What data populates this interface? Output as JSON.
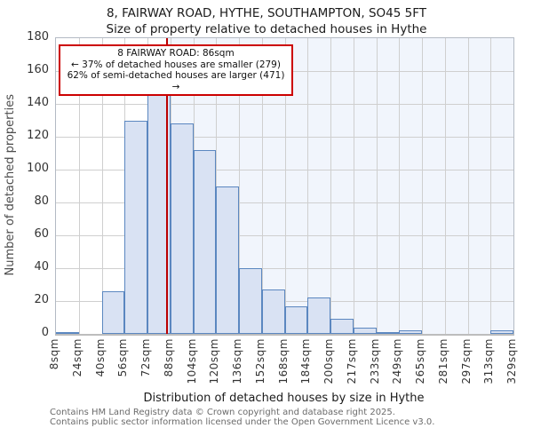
{
  "header": {
    "title": "8, FAIRWAY ROAD, HYTHE, SOUTHAMPTON, SO45 5FT",
    "subtitle": "Size of property relative to detached houses in Hythe"
  },
  "annotation": {
    "line1": "8 FAIRWAY ROAD: 86sqm",
    "line2": "← 37% of detached houses are smaller (279)",
    "line3": "62% of semi-detached houses are larger (471) →"
  },
  "marker": {
    "value_sqm": 86,
    "color": "#bb0000",
    "box_border_color": "#cc0000"
  },
  "chart_data": {
    "type": "bar",
    "title": "8, FAIRWAY ROAD, HYTHE, SOUTHAMPTON, SO45 5FT",
    "subtitle": "Size of property relative to detached houses in Hythe",
    "xlabel": "Distribution of detached houses by size in Hythe",
    "ylabel": "Number of detached properties",
    "x_tick_labels": [
      "8sqm",
      "24sqm",
      "40sqm",
      "56sqm",
      "72sqm",
      "88sqm",
      "104sqm",
      "120sqm",
      "136sqm",
      "152sqm",
      "168sqm",
      "184sqm",
      "200sqm",
      "217sqm",
      "233sqm",
      "249sqm",
      "265sqm",
      "281sqm",
      "297sqm",
      "313sqm",
      "329sqm"
    ],
    "x_range_sqm": [
      8,
      329
    ],
    "categories": [
      "8-24",
      "24-40",
      "40-56",
      "56-72",
      "72-88",
      "88-104",
      "104-120",
      "120-136",
      "136-152",
      "152-168",
      "168-184",
      "184-200",
      "200-217",
      "217-233",
      "233-249",
      "249-265",
      "265-281",
      "281-297",
      "297-313",
      "313-329"
    ],
    "values": [
      1,
      0,
      26,
      130,
      150,
      128,
      112,
      90,
      40,
      27,
      17,
      22,
      9,
      4,
      1,
      2,
      0,
      0,
      0,
      2
    ],
    "ylim": [
      0,
      180
    ],
    "y_ticks": [
      0,
      20,
      40,
      60,
      80,
      100,
      120,
      140,
      160,
      180
    ],
    "grid": true,
    "legend": "none",
    "colors": {
      "bar_fill": "#d9e2f3",
      "bar_stroke": "#5b87c0",
      "shade_right_of_marker": "#f1f5fc",
      "gridline": "#cfcfcf",
      "marker_line": "#bb0000"
    }
  },
  "footer": {
    "line1": "Contains HM Land Registry data © Crown copyright and database right 2025.",
    "line2": "Contains public sector information licensed under the Open Government Licence v3.0."
  }
}
